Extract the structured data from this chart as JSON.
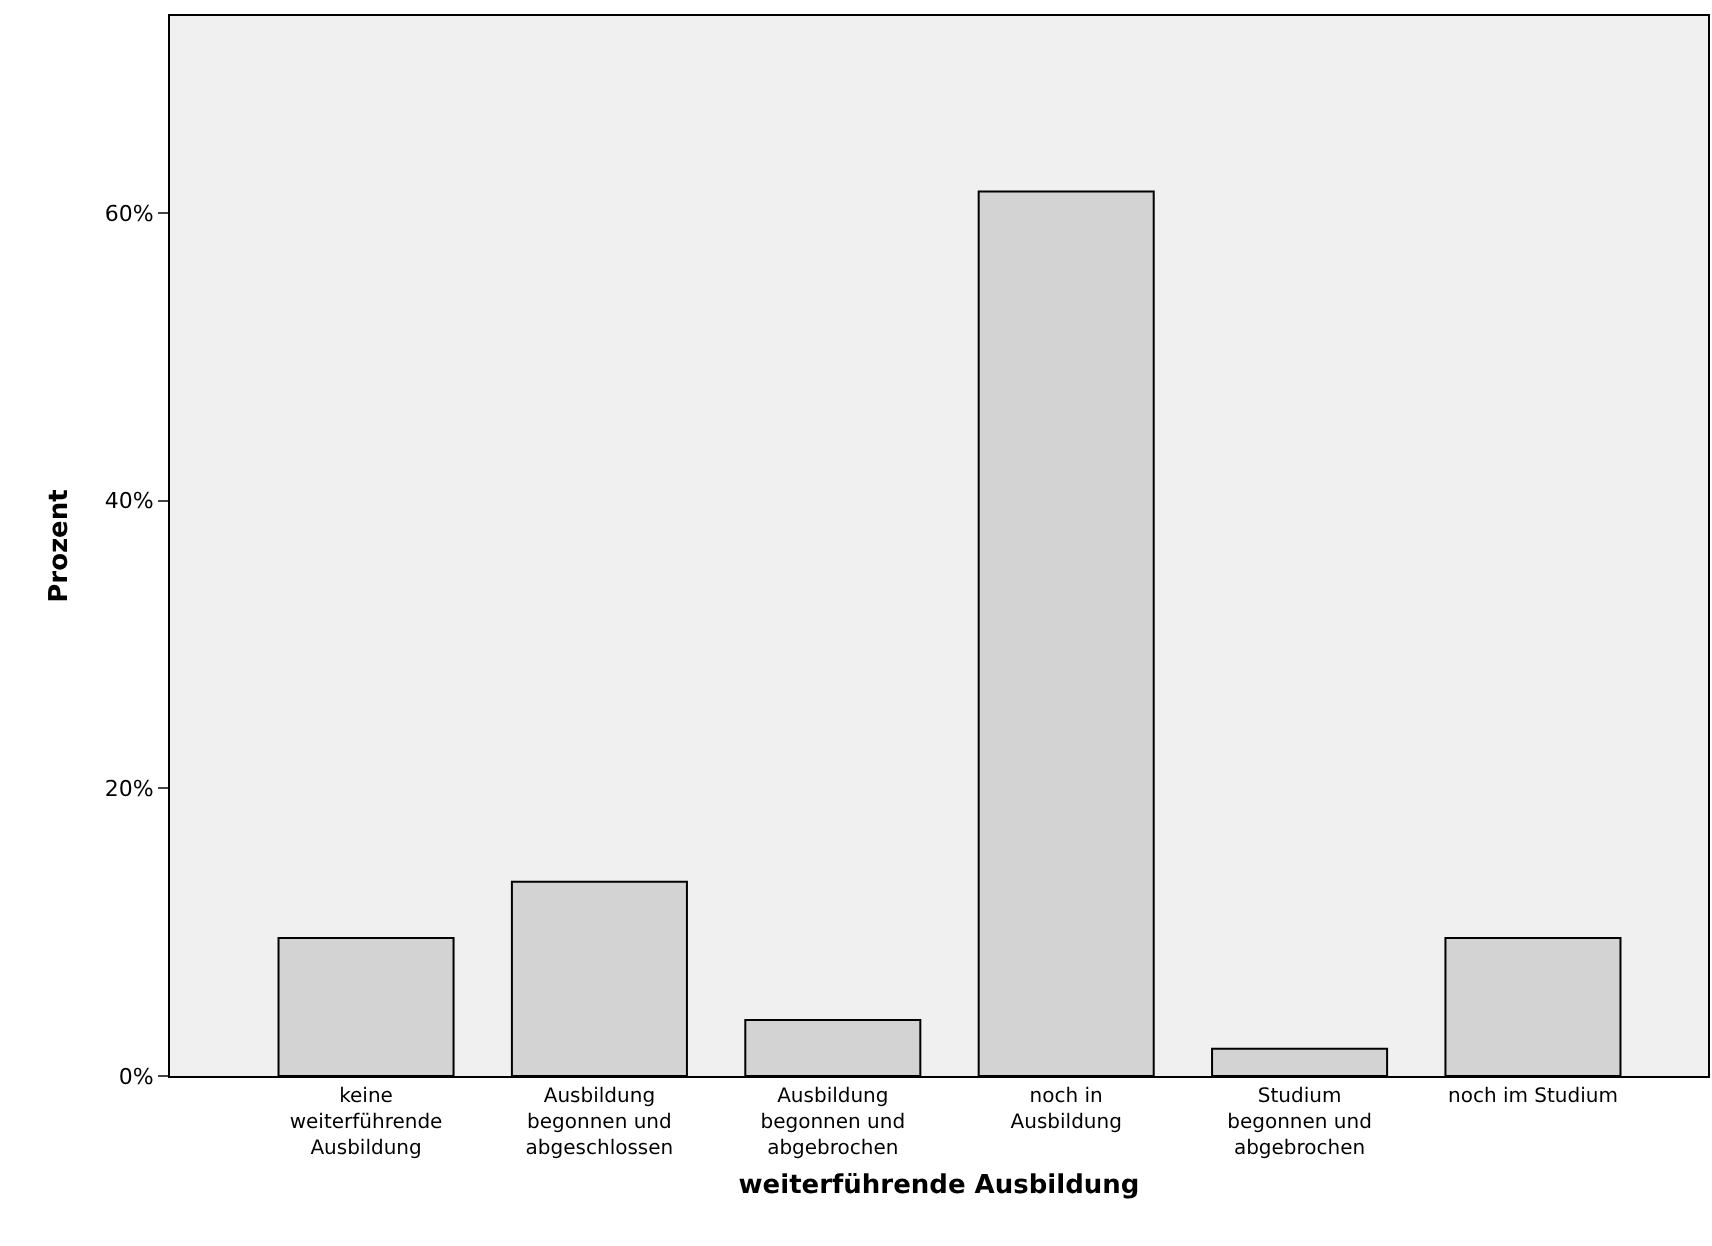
{
  "chart_data": {
    "type": "bar",
    "xlabel": "weiterführende Ausbildung",
    "ylabel": "Prozent",
    "categories": [
      "keine weiterführende Ausbildung",
      "Ausbildung begonnen und abgeschlossen",
      "Ausbildung begonnen und abgebrochen",
      "noch in Ausbildung",
      "Studium begonnen und abgebrochen",
      "noch im Studium"
    ],
    "values": [
      9.6,
      13.5,
      3.9,
      61.5,
      1.9,
      9.6
    ],
    "color": "#d3d3d3",
    "ylim": [
      0,
      73.7
    ],
    "yticks": [
      {
        "value": 0,
        "label": "0%"
      },
      {
        "value": 20,
        "label": "20%"
      },
      {
        "value": 40,
        "label": "40%"
      },
      {
        "value": 60,
        "label": "60%"
      }
    ],
    "grid": false
  }
}
